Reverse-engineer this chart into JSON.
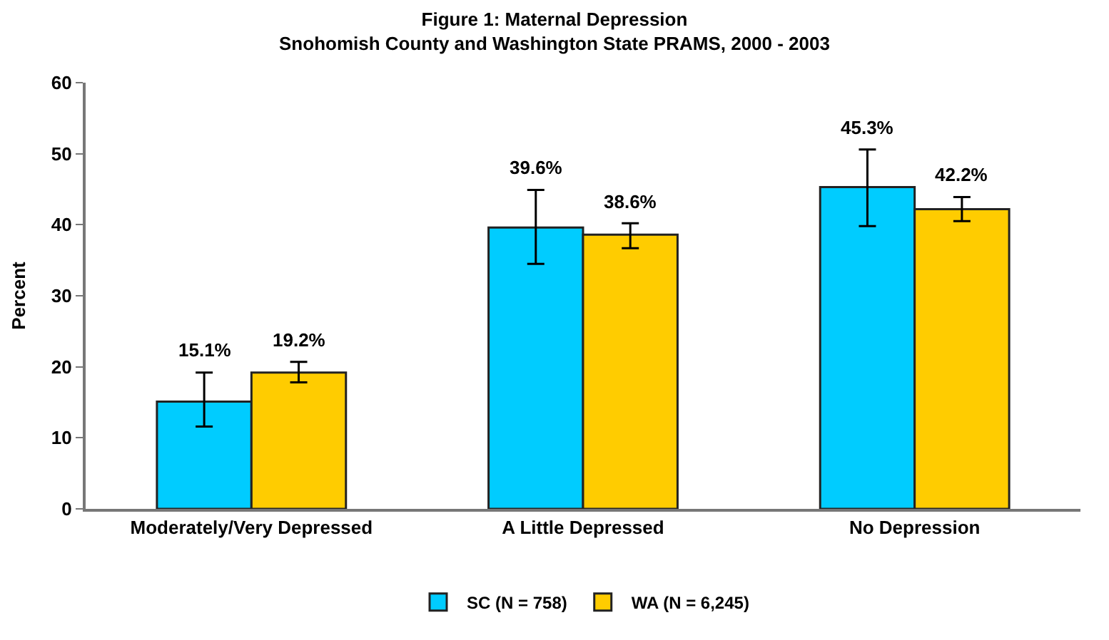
{
  "chart_data": {
    "type": "bar",
    "title": "Figure 1: Maternal Depression",
    "subtitle": "Snohomish County and Washington State PRAMS, 2000 - 2003",
    "ylabel": "Percent",
    "categories": [
      "Moderately/Very Depressed",
      "A Little Depressed",
      "No Depression"
    ],
    "series": [
      {
        "name": "SC (N = 758)",
        "color": "#00ccff",
        "values": [
          15.1,
          39.6,
          45.3
        ],
        "value_labels": [
          "15.1%",
          "39.6%",
          "45.3%"
        ],
        "errors": [
          [
            11.6,
            19.2
          ],
          [
            34.5,
            44.9
          ],
          [
            39.8,
            50.6
          ]
        ]
      },
      {
        "name": "WA (N = 6,245)",
        "color": "#ffcc00",
        "values": [
          19.2,
          38.6,
          42.2
        ],
        "value_labels": [
          "19.2%",
          "38.6%",
          "42.2%"
        ],
        "errors": [
          [
            17.8,
            20.7
          ],
          [
            36.7,
            40.2
          ],
          [
            40.5,
            43.9
          ]
        ]
      }
    ],
    "ylim": [
      0,
      60
    ],
    "yticks": [
      0,
      10,
      20,
      30,
      40,
      50,
      60
    ],
    "legend": "bottom"
  }
}
